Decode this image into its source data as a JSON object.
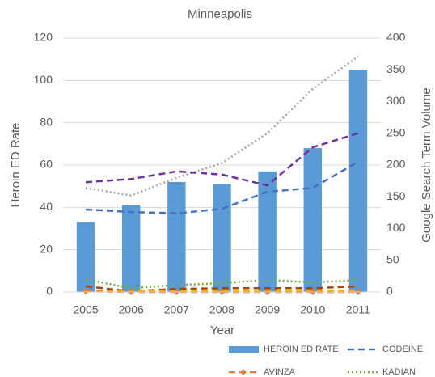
{
  "chart_data": {
    "type": "bar_line",
    "title": "Minneapolis",
    "xlabel": "Year",
    "ylabel": "Heroin ED Rate",
    "y2label": "Google Search Term Volume",
    "categories": [
      "2005",
      "2006",
      "2007",
      "2008",
      "2009",
      "2010",
      "2011"
    ],
    "ylim": [
      0,
      120
    ],
    "yticks": [
      0,
      20,
      40,
      60,
      80,
      100,
      120
    ],
    "y2lim": [
      0,
      400
    ],
    "y2ticks": [
      0,
      50,
      100,
      150,
      200,
      250,
      300,
      350,
      400
    ],
    "grid": true,
    "series": [
      {
        "name": "HEROIN ED RATE",
        "type": "bar",
        "color": "#5b9bd5",
        "values": [
          33,
          41,
          52,
          51,
          57,
          68,
          105
        ]
      },
      {
        "type": "line",
        "style": "dotted",
        "color": "#a5a5a5",
        "axis": "y2",
        "values": [
          164,
          152,
          180,
          203,
          250,
          320,
          371
        ]
      },
      {
        "type": "line",
        "style": "dashed",
        "color": "#7030a0",
        "axis": "y2",
        "values": [
          173,
          178,
          190,
          185,
          168,
          228,
          250
        ]
      },
      {
        "name": "CODEINE",
        "type": "line",
        "style": "dashed",
        "color": "#4472c4",
        "axis": "y2",
        "values": [
          130,
          126,
          124,
          131,
          158,
          164,
          205
        ]
      },
      {
        "type": "line",
        "style": "dashed",
        "color": "#9e480e",
        "axis": "y2",
        "values": [
          9,
          1,
          5,
          6,
          6,
          6,
          9
        ]
      },
      {
        "type": "line",
        "style": "dashed",
        "color": "#ffc000",
        "axis": "y2",
        "values": [
          1,
          1,
          1,
          1,
          1,
          1,
          1
        ]
      },
      {
        "name": "AVINZA",
        "type": "line",
        "style": "dashed",
        "marker": "diamond",
        "color": "#ed7d31",
        "axis": "y2",
        "values": [
          1,
          0,
          0,
          0,
          0,
          0,
          0
        ]
      },
      {
        "name": "KADIAN",
        "type": "line",
        "style": "dotted",
        "color": "#70ad47",
        "axis": "y2",
        "values": [
          20,
          6,
          11,
          14,
          19,
          15,
          19
        ]
      }
    ]
  }
}
